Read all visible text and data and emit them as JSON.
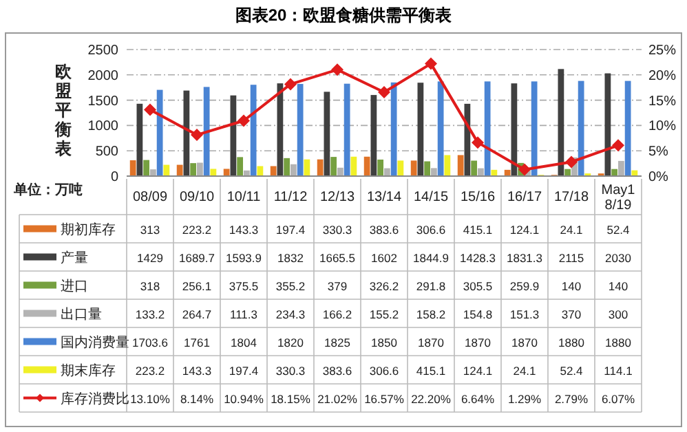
{
  "chart_data": {
    "type": "bar",
    "title": "图表20：欧盟食糖供需平衡表",
    "ylabel": "欧盟平衡表",
    "annotations": [
      "单位：万吨"
    ],
    "categories": [
      "08/09",
      "09/10",
      "10/11",
      "11/12",
      "12/13",
      "13/14",
      "14/15",
      "15/16",
      "16/17",
      "17/18",
      "May18/19"
    ],
    "series": [
      {
        "name": "期初库存",
        "color": "#e07328",
        "values": [
          313,
          223.2,
          143.3,
          197.4,
          330.3,
          383.6,
          306.6,
          415.1,
          124.1,
          24.1,
          52.4
        ]
      },
      {
        "name": "产量",
        "color": "#404040",
        "values": [
          1429,
          1689.7,
          1593.9,
          1832,
          1665.5,
          1602,
          1844.9,
          1428.3,
          1831.3,
          2115,
          2030
        ]
      },
      {
        "name": "进口",
        "color": "#76a040",
        "values": [
          318,
          256.1,
          375.5,
          355.2,
          379,
          326.2,
          291.8,
          305.5,
          259.9,
          140,
          140
        ]
      },
      {
        "name": "出口量",
        "color": "#b4b4b4",
        "values": [
          133.2,
          264.7,
          111.3,
          234.3,
          166.2,
          155.2,
          158.2,
          154.8,
          151.3,
          370,
          300
        ]
      },
      {
        "name": "国内消费量",
        "color": "#4a84d4",
        "values": [
          1703.6,
          1761,
          1804,
          1820,
          1825,
          1850,
          1870,
          1870,
          1870,
          1880,
          1880
        ]
      },
      {
        "name": "期末库存",
        "color": "#f0f028",
        "values": [
          223.2,
          143.3,
          197.4,
          330.3,
          383.6,
          306.6,
          415.1,
          124.1,
          24.1,
          52.4,
          114.1
        ]
      },
      {
        "name": "库存消费比",
        "type": "line",
        "axis": "y2",
        "color": "#e01c1c",
        "marker": "diamond",
        "values": [
          13.1,
          8.14,
          10.94,
          18.15,
          21.02,
          16.57,
          22.2,
          6.64,
          1.29,
          2.79,
          6.07
        ],
        "value_labels": [
          "13.10%",
          "8.14%",
          "10.94%",
          "18.15%",
          "21.02%",
          "16.57%",
          "22.20%",
          "6.64%",
          "1.29%",
          "2.79%",
          "6.07%"
        ]
      }
    ],
    "ylim": [
      0,
      2500
    ],
    "yticks": [
      0,
      500,
      1000,
      1500,
      2000,
      2500
    ],
    "y2lim": [
      0,
      25
    ],
    "y2ticks": [
      {
        "value": 0,
        "label": "0%"
      },
      {
        "value": 5,
        "label": "5%"
      },
      {
        "value": 10,
        "label": "10%"
      },
      {
        "value": 15,
        "label": "15%"
      },
      {
        "value": 20,
        "label": "20%"
      },
      {
        "value": 25,
        "label": "25%"
      }
    ],
    "grid": "y",
    "legend": "bottom",
    "data_labels": true
  }
}
